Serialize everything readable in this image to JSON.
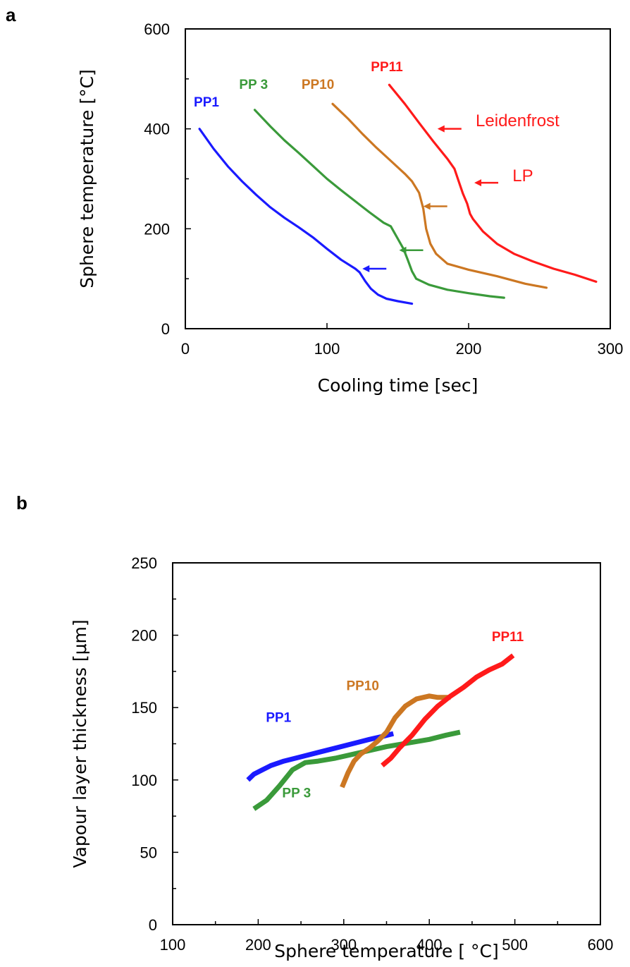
{
  "panel_labels": [
    "a",
    "b"
  ],
  "chart_data": [
    {
      "type": "line",
      "panel": "a",
      "xlabel": "Cooling time [sec]",
      "ylabel": "Sphere  temperature [°C]",
      "xlim": [
        0,
        300
      ],
      "ylim": [
        0,
        600
      ],
      "xticks": [
        0,
        100,
        200,
        300
      ],
      "yticks": [
        0,
        200,
        400,
        600
      ],
      "grid": false,
      "series": [
        {
          "name": "PP1",
          "color": "#1a1aff",
          "points": [
            [
              10,
              400
            ],
            [
              20,
              360
            ],
            [
              30,
              325
            ],
            [
              40,
              295
            ],
            [
              50,
              268
            ],
            [
              60,
              243
            ],
            [
              70,
              222
            ],
            [
              80,
              203
            ],
            [
              90,
              183
            ],
            [
              100,
              160
            ],
            [
              110,
              138
            ],
            [
              120,
              120
            ],
            [
              123,
              113
            ],
            [
              127,
              95
            ],
            [
              131,
              80
            ],
            [
              136,
              68
            ],
            [
              142,
              60
            ],
            [
              150,
              55
            ],
            [
              160,
              50
            ]
          ]
        },
        {
          "name": "PP 3",
          "color": "#3a9a3a",
          "points": [
            [
              49,
              438
            ],
            [
              60,
              405
            ],
            [
              70,
              377
            ],
            [
              80,
              352
            ],
            [
              90,
              326
            ],
            [
              100,
              300
            ],
            [
              110,
              277
            ],
            [
              120,
              255
            ],
            [
              130,
              233
            ],
            [
              140,
              212
            ],
            [
              145,
              205
            ],
            [
              150,
              180
            ],
            [
              154,
              160
            ],
            [
              157,
              138
            ],
            [
              160,
              115
            ],
            [
              163,
              100
            ],
            [
              172,
              88
            ],
            [
              185,
              78
            ],
            [
              200,
              71
            ],
            [
              215,
              65
            ],
            [
              225,
              62
            ]
          ]
        },
        {
          "name": "PP10",
          "color": "#cc7722",
          "points": [
            [
              104,
              450
            ],
            [
              115,
              420
            ],
            [
              125,
              390
            ],
            [
              135,
              362
            ],
            [
              145,
              336
            ],
            [
              155,
              310
            ],
            [
              160,
              295
            ],
            [
              165,
              272
            ],
            [
              168,
              240
            ],
            [
              170,
              200
            ],
            [
              173,
              170
            ],
            [
              177,
              150
            ],
            [
              185,
              130
            ],
            [
              200,
              118
            ],
            [
              220,
              105
            ],
            [
              240,
              90
            ],
            [
              255,
              82
            ]
          ]
        },
        {
          "name": "PP11",
          "color": "#ff1a1a",
          "points": [
            [
              144,
              488
            ],
            [
              155,
              450
            ],
            [
              165,
              412
            ],
            [
              175,
              375
            ],
            [
              185,
              340
            ],
            [
              190,
              320
            ],
            [
              193,
              295
            ],
            [
              196,
              270
            ],
            [
              199,
              250
            ],
            [
              201,
              230
            ],
            [
              203,
              220
            ],
            [
              210,
              195
            ],
            [
              220,
              170
            ],
            [
              232,
              150
            ],
            [
              245,
              135
            ],
            [
              260,
              120
            ],
            [
              275,
              108
            ],
            [
              290,
              94
            ]
          ]
        }
      ],
      "annotations": [
        {
          "text": "PP1",
          "color": "#1a1aff",
          "kind": "series-label",
          "x": 6,
          "y": 445
        },
        {
          "text": "PP 3",
          "color": "#3a9a3a",
          "kind": "series-label",
          "x": 38,
          "y": 480
        },
        {
          "text": "PP10",
          "color": "#cc7722",
          "kind": "series-label",
          "x": 82,
          "y": 480
        },
        {
          "text": "PP11",
          "color": "#ff1a1a",
          "kind": "series-label",
          "x": 131,
          "y": 515
        },
        {
          "text": "Leidenfrost",
          "color": "#ff1a1a",
          "kind": "text-label",
          "x": 205,
          "y": 405
        },
        {
          "text": "LP",
          "color": "#ff1a1a",
          "kind": "text-label",
          "x": 231,
          "y": 295
        }
      ],
      "arrows": [
        {
          "color": "#ff1a1a",
          "tip": [
            178,
            400
          ]
        },
        {
          "color": "#ff1a1a",
          "tip": [
            204,
            292
          ]
        },
        {
          "color": "#cc7722",
          "tip": [
            168,
            245
          ]
        },
        {
          "color": "#3a9a3a",
          "tip": [
            151,
            157
          ]
        },
        {
          "color": "#1a1aff",
          "tip": [
            125,
            120
          ]
        }
      ]
    },
    {
      "type": "scatter",
      "panel": "b",
      "xlabel": "Sphere temperature [ °C]",
      "ylabel": "Vapour layer thickness [μm]",
      "xlim": [
        100,
        600
      ],
      "ylim": [
        0,
        250
      ],
      "xticks": [
        100,
        200,
        300,
        400,
        500,
        600
      ],
      "yticks": [
        0,
        50,
        100,
        150,
        200,
        250
      ],
      "grid": false,
      "series": [
        {
          "name": "PP1",
          "color": "#1a1aff",
          "points": [
            [
              188,
              100
            ],
            [
              195,
              104
            ],
            [
              205,
              107
            ],
            [
              215,
              110
            ],
            [
              230,
              113
            ],
            [
              250,
              116
            ],
            [
              270,
              119
            ],
            [
              290,
              122
            ],
            [
              310,
              125
            ],
            [
              330,
              128
            ],
            [
              345,
              130
            ],
            [
              358,
              132
            ]
          ]
        },
        {
          "name": "PP 3",
          "color": "#3a9a3a",
          "points": [
            [
              195,
              80
            ],
            [
              210,
              86
            ],
            [
              225,
              96
            ],
            [
              240,
              107
            ],
            [
              255,
              112
            ],
            [
              270,
              113
            ],
            [
              290,
              115
            ],
            [
              320,
              119
            ],
            [
              350,
              123
            ],
            [
              380,
              126
            ],
            [
              400,
              128
            ],
            [
              420,
              131
            ],
            [
              436,
              133
            ]
          ]
        },
        {
          "name": "PP10",
          "color": "#cc7722",
          "points": [
            [
              298,
              95
            ],
            [
              305,
              105
            ],
            [
              312,
              113
            ],
            [
              320,
              118
            ],
            [
              330,
              122
            ],
            [
              340,
              127
            ],
            [
              350,
              133
            ],
            [
              360,
              143
            ],
            [
              372,
              151
            ],
            [
              385,
              156
            ],
            [
              400,
              158
            ],
            [
              410,
              157
            ],
            [
              425,
              157
            ]
          ]
        },
        {
          "name": "PP11",
          "color": "#ff1a1a",
          "points": [
            [
              345,
              110
            ],
            [
              355,
              115
            ],
            [
              365,
              122
            ],
            [
              380,
              131
            ],
            [
              395,
              142
            ],
            [
              410,
              151
            ],
            [
              425,
              158
            ],
            [
              440,
              164
            ],
            [
              455,
              171
            ],
            [
              470,
              176
            ],
            [
              485,
              180
            ],
            [
              498,
              186
            ]
          ]
        }
      ],
      "annotations": [
        {
          "text": "PP1",
          "color": "#1a1aff",
          "kind": "series-label",
          "x": 209,
          "y": 140
        },
        {
          "text": "PP 3",
          "color": "#3a9a3a",
          "kind": "series-label",
          "x": 228,
          "y": 88
        },
        {
          "text": "PP10",
          "color": "#cc7722",
          "kind": "series-label",
          "x": 303,
          "y": 162
        },
        {
          "text": "PP11",
          "color": "#ff1a1a",
          "kind": "series-label",
          "x": 473,
          "y": 196
        }
      ],
      "arrows": []
    }
  ]
}
